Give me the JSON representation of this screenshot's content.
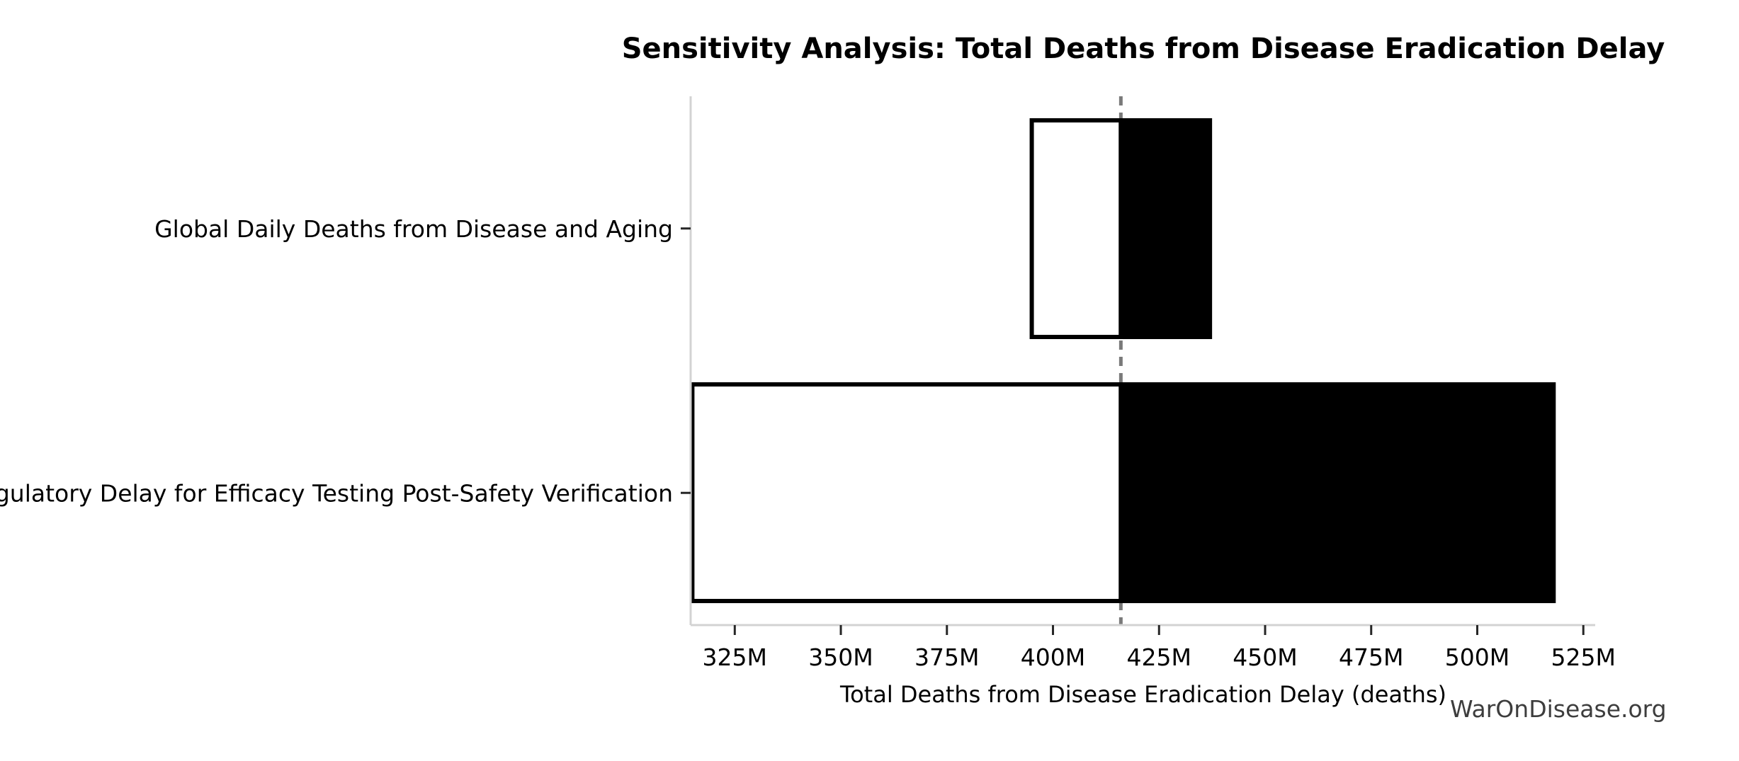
{
  "title": "Sensitivity Analysis: Total Deaths from Disease Eradication Delay",
  "watermark": "WarOnDisease.org",
  "chart_data": {
    "type": "bar",
    "subtype": "tornado",
    "orientation": "horizontal",
    "title": "Sensitivity Analysis: Total Deaths from Disease Eradication Delay",
    "xlabel": "Total Deaths from Disease Eradication Delay (deaths)",
    "unit": "M deaths",
    "baseline_M": 416,
    "categories": [
      "Global Daily Deaths from Disease and Aging",
      "Regulatory Delay for Efficacy Testing Post-Safety Verification"
    ],
    "bars": [
      {
        "label": "Global Daily Deaths from Disease and Aging",
        "low_M": 395,
        "high_M": 437
      },
      {
        "label": "Regulatory Delay for Efficacy Testing Post-Safety Verification",
        "low_M": 315,
        "high_M": 518
      }
    ],
    "x_ticks": [
      {
        "value_M": 325,
        "label": "325M"
      },
      {
        "value_M": 350,
        "label": "350M"
      },
      {
        "value_M": 375,
        "label": "375M"
      },
      {
        "value_M": 400,
        "label": "400M"
      },
      {
        "value_M": 425,
        "label": "425M"
      },
      {
        "value_M": 450,
        "label": "450M"
      },
      {
        "value_M": 475,
        "label": "475M"
      },
      {
        "value_M": 500,
        "label": "500M"
      },
      {
        "value_M": 525,
        "label": "525M"
      }
    ],
    "xlim_M": [
      314.6,
      527.8
    ],
    "grid": false,
    "legend": "none",
    "colors": {
      "low_fill": "#ffffff",
      "high_fill": "#000000",
      "bar_edge": "#000000",
      "baseline_dash": "#7a7a7a",
      "spine": "#d3d3d3",
      "tick_mark": "#262626",
      "text": "#000000",
      "watermark": "#3d3d3d"
    }
  }
}
